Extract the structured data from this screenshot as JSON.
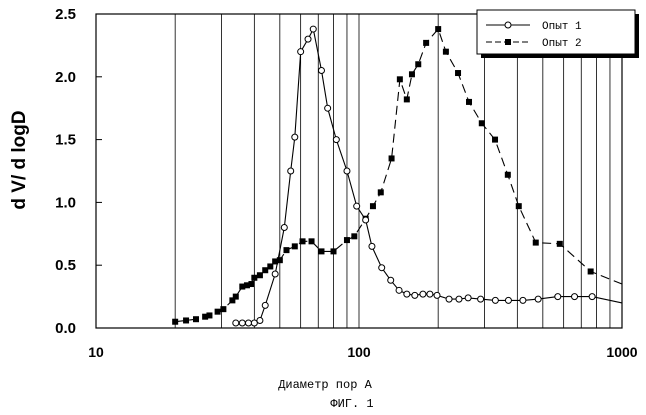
{
  "chart_data": {
    "type": "line",
    "title": "",
    "xlabel": "Диаметр пор А",
    "ylabel": "d V/ d logD",
    "caption": "ФИГ. 1",
    "x_scale": "log",
    "xlim": [
      10,
      1000
    ],
    "ylim": [
      0,
      2.5
    ],
    "xticks": [
      "10",
      "100",
      "1000"
    ],
    "yticks": [
      "0.0",
      "0.5",
      "1.0",
      "1.5",
      "2.0",
      "2.5"
    ],
    "grid": "vertical",
    "legend_position": "top-right",
    "series": [
      {
        "name": "Опыт 1",
        "marker": "open-circle",
        "line": "solid",
        "points": [
          [
            34,
            0.04
          ],
          [
            36,
            0.04
          ],
          [
            38,
            0.04
          ],
          [
            40,
            0.04
          ],
          [
            42,
            0.06
          ],
          [
            44,
            0.18
          ],
          [
            48,
            0.43
          ],
          [
            52,
            0.8
          ],
          [
            55,
            1.25
          ],
          [
            57,
            1.52
          ],
          [
            60,
            2.2
          ],
          [
            64,
            2.3
          ],
          [
            67,
            2.38
          ],
          [
            72,
            2.05
          ],
          [
            76,
            1.75
          ],
          [
            82,
            1.5
          ],
          [
            90,
            1.25
          ],
          [
            98,
            0.97
          ],
          [
            106,
            0.86
          ],
          [
            112,
            0.65
          ],
          [
            122,
            0.48
          ],
          [
            132,
            0.38
          ],
          [
            142,
            0.3
          ],
          [
            152,
            0.27
          ],
          [
            163,
            0.26
          ],
          [
            175,
            0.27
          ],
          [
            186,
            0.27
          ],
          [
            198,
            0.26
          ],
          [
            220,
            0.23
          ],
          [
            240,
            0.23
          ],
          [
            260,
            0.24
          ],
          [
            290,
            0.23
          ],
          [
            330,
            0.22
          ],
          [
            370,
            0.22
          ],
          [
            420,
            0.22
          ],
          [
            480,
            0.23
          ],
          [
            570,
            0.25
          ],
          [
            660,
            0.25
          ],
          [
            770,
            0.25
          ],
          [
            1000,
            0.2
          ]
        ]
      },
      {
        "name": "Опыт 2",
        "marker": "filled-square",
        "line": "dashed",
        "points": [
          [
            20,
            0.05
          ],
          [
            22,
            0.06
          ],
          [
            24,
            0.07
          ],
          [
            26,
            0.09
          ],
          [
            27,
            0.1
          ],
          [
            29,
            0.13
          ],
          [
            30.5,
            0.15
          ],
          [
            33,
            0.22
          ],
          [
            34,
            0.25
          ],
          [
            36,
            0.33
          ],
          [
            37.5,
            0.34
          ],
          [
            39,
            0.35
          ],
          [
            40,
            0.4
          ],
          [
            42,
            0.42
          ],
          [
            44,
            0.46
          ],
          [
            46,
            0.49
          ],
          [
            48,
            0.53
          ],
          [
            50,
            0.54
          ],
          [
            53,
            0.62
          ],
          [
            57,
            0.65
          ],
          [
            61,
            0.69
          ],
          [
            66,
            0.69
          ],
          [
            72,
            0.61
          ],
          [
            80,
            0.61
          ],
          [
            90,
            0.7
          ],
          [
            96,
            0.73
          ],
          [
            106,
            0.87
          ],
          [
            113,
            0.97
          ],
          [
            121,
            1.08
          ],
          [
            133,
            1.35
          ],
          [
            143,
            1.98
          ],
          [
            152,
            1.82
          ],
          [
            159,
            2.02
          ],
          [
            168,
            2.1
          ],
          [
            180,
            2.27
          ],
          [
            200,
            2.38
          ],
          [
            214,
            2.2
          ],
          [
            238,
            2.03
          ],
          [
            262,
            1.8
          ],
          [
            293,
            1.63
          ],
          [
            329,
            1.5
          ],
          [
            368,
            1.22
          ],
          [
            405,
            0.97
          ],
          [
            470,
            0.68
          ],
          [
            580,
            0.67
          ],
          [
            760,
            0.45
          ],
          [
            1000,
            0.35
          ]
        ]
      }
    ]
  }
}
